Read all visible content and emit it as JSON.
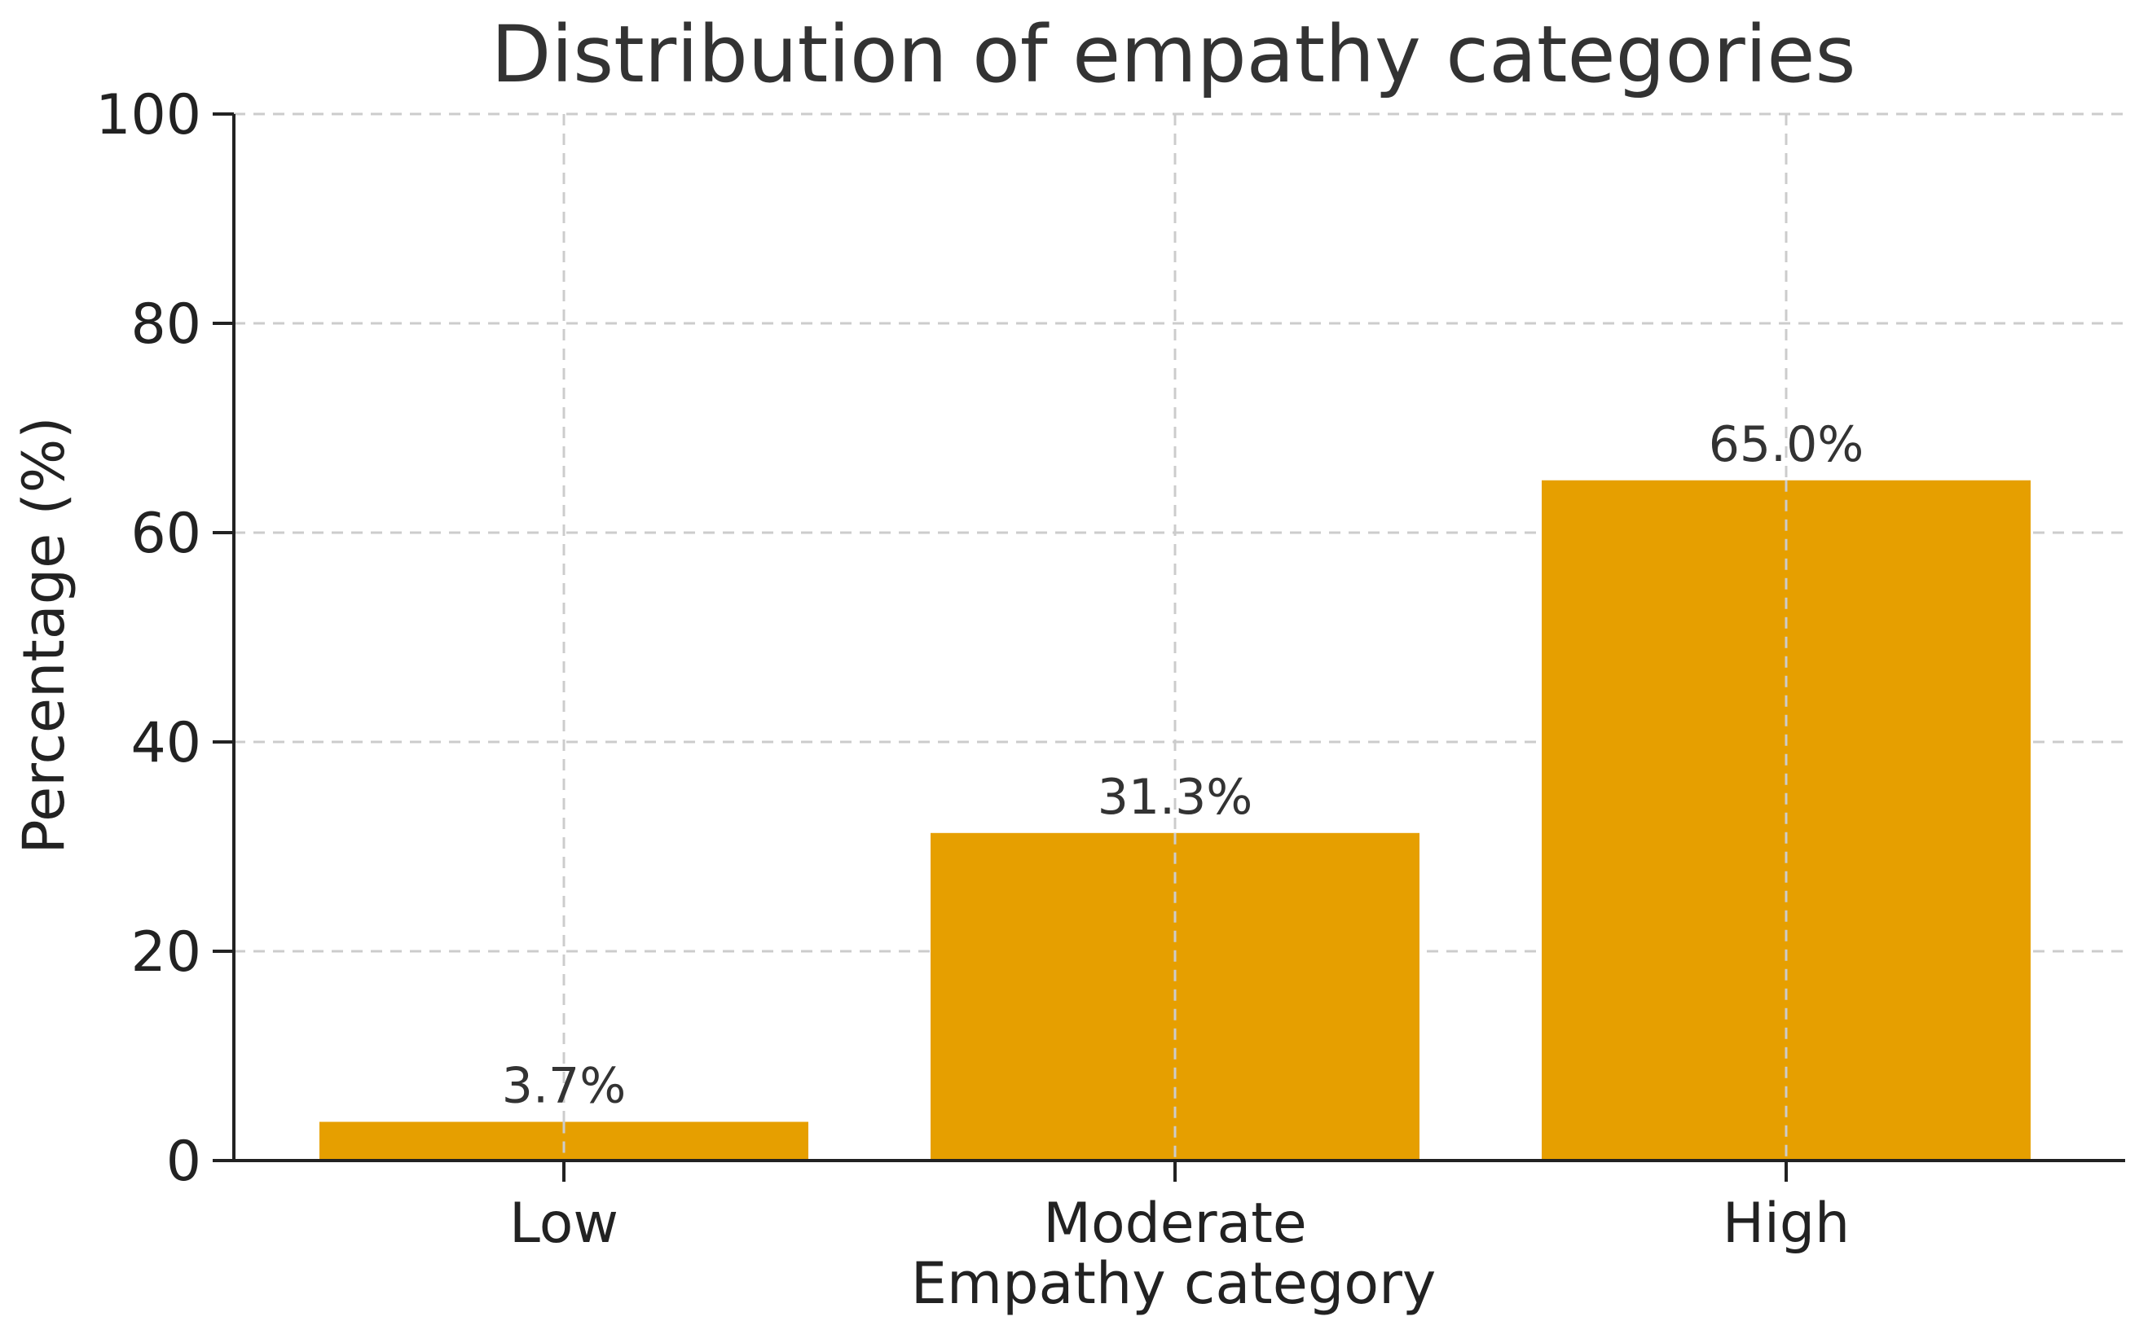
{
  "chart_data": {
    "type": "bar",
    "title": "Distribution of empathy categories",
    "xlabel": "Empathy category",
    "ylabel": "Percentage (%)",
    "categories": [
      "Low",
      "Moderate",
      "High"
    ],
    "values": [
      3.7,
      31.3,
      65.0
    ],
    "data_labels": [
      "3.7%",
      "31.3%",
      "65.0%"
    ],
    "ylim": [
      0,
      100
    ],
    "yticks": [
      0,
      20,
      40,
      60,
      80,
      100
    ],
    "ytick_labels": [
      "0",
      "20",
      "40",
      "60",
      "80",
      "100"
    ],
    "grid": true,
    "bar_color": "#E69F00"
  }
}
